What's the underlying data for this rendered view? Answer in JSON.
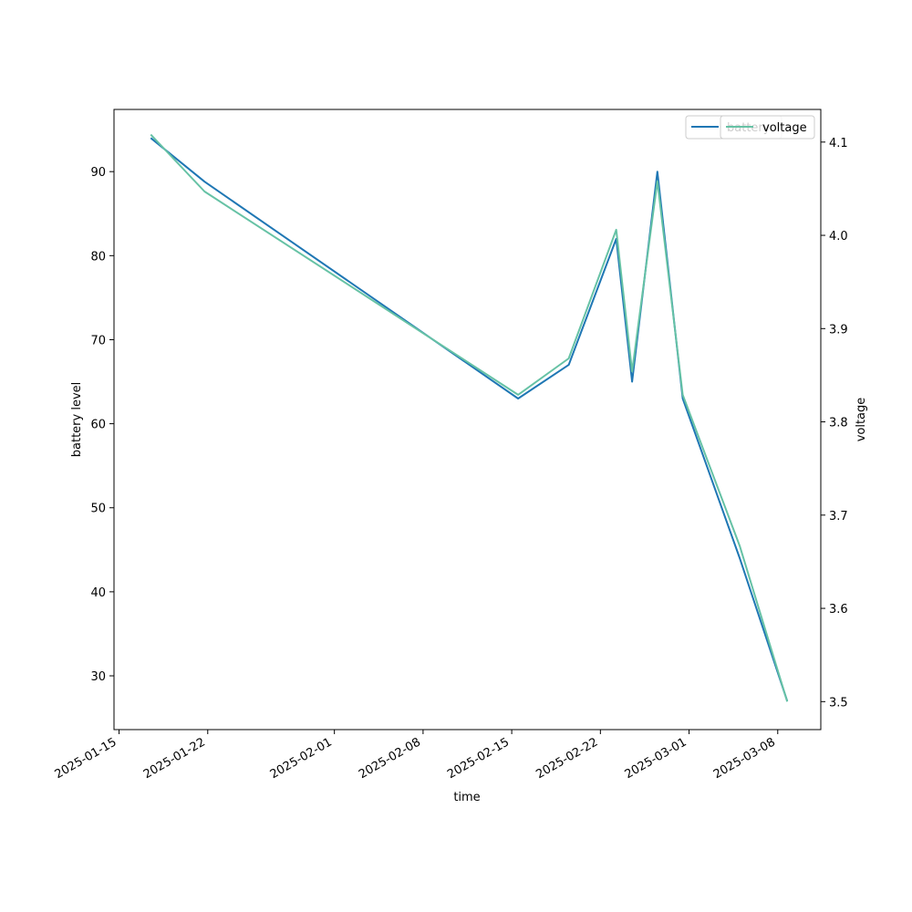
{
  "chart_data": {
    "type": "line",
    "xlabel": "time",
    "ylabel": "battery level",
    "y2label": "voltage",
    "x_ticks": [
      "2025-01-15",
      "2025-01-22",
      "2025-02-01",
      "2025-02-08",
      "2025-02-15",
      "2025-02-22",
      "2025-03-01",
      "2025-03-08"
    ],
    "xlim": [
      "2025-01-14T14:24",
      "2025-03-11T09:36"
    ],
    "ylim": [
      23.6,
      97.4
    ],
    "y_ticks": [
      30,
      40,
      50,
      60,
      70,
      80,
      90
    ],
    "y2lim": [
      3.47,
      4.135
    ],
    "y2_ticks": [
      "3.5",
      "3.6",
      "3.7",
      "3.8",
      "3.9",
      "4.0",
      "4.1"
    ],
    "grid": false,
    "legend_position": "top-right",
    "series": [
      {
        "name": "battery",
        "axis": "left",
        "color": "#1f77b4",
        "points": [
          {
            "x": "2025-01-17T12:00",
            "y": 94
          },
          {
            "x": "2025-01-21T18:00",
            "y": 88.8
          },
          {
            "x": "2025-02-15T12:00",
            "y": 63
          },
          {
            "x": "2025-02-19T12:00",
            "y": 67
          },
          {
            "x": "2025-02-23T06:00",
            "y": 82
          },
          {
            "x": "2025-02-24T12:00",
            "y": 65
          },
          {
            "x": "2025-02-26T12:00",
            "y": 90
          },
          {
            "x": "2025-02-28T12:00",
            "y": 63
          },
          {
            "x": "2025-03-05T00:00",
            "y": 44
          },
          {
            "x": "2025-03-08T18:00",
            "y": 27
          }
        ]
      },
      {
        "name": "voltage",
        "axis": "right",
        "color": "#66c2a5",
        "points": [
          {
            "x": "2025-01-17T12:00",
            "y": 4.108
          },
          {
            "x": "2025-01-21T18:00",
            "y": 4.047
          },
          {
            "x": "2025-02-15T12:00",
            "y": 3.829
          },
          {
            "x": "2025-02-19T12:00",
            "y": 3.868
          },
          {
            "x": "2025-02-23T06:00",
            "y": 4.006
          },
          {
            "x": "2025-02-24T12:00",
            "y": 3.854
          },
          {
            "x": "2025-02-26T12:00",
            "y": 4.058
          },
          {
            "x": "2025-02-28T12:00",
            "y": 3.829
          },
          {
            "x": "2025-03-05T00:00",
            "y": 3.667
          },
          {
            "x": "2025-03-08T18:00",
            "y": 3.5
          }
        ]
      }
    ]
  }
}
